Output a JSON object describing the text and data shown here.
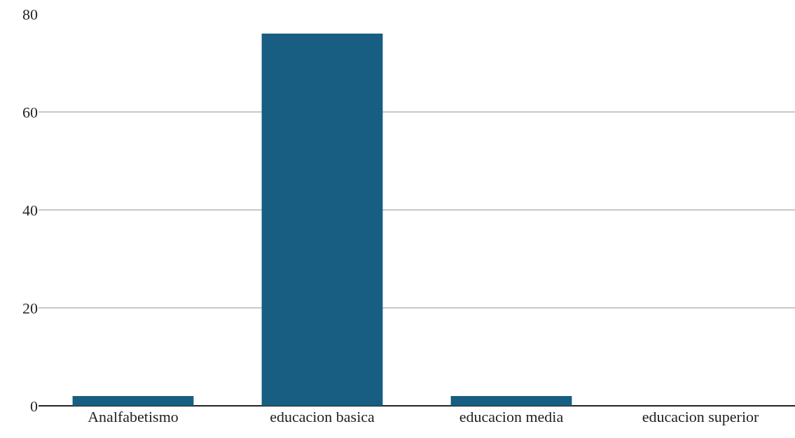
{
  "chart_data": {
    "type": "bar",
    "categories": [
      "Analfabetismo",
      "educacion basica",
      "educacion media",
      "educacion superior"
    ],
    "values": [
      2,
      76,
      2,
      0
    ],
    "color": "#175e82",
    "ylim": [
      0,
      80
    ],
    "yticks": [
      0,
      20,
      40,
      60,
      80
    ],
    "grid": "y"
  }
}
